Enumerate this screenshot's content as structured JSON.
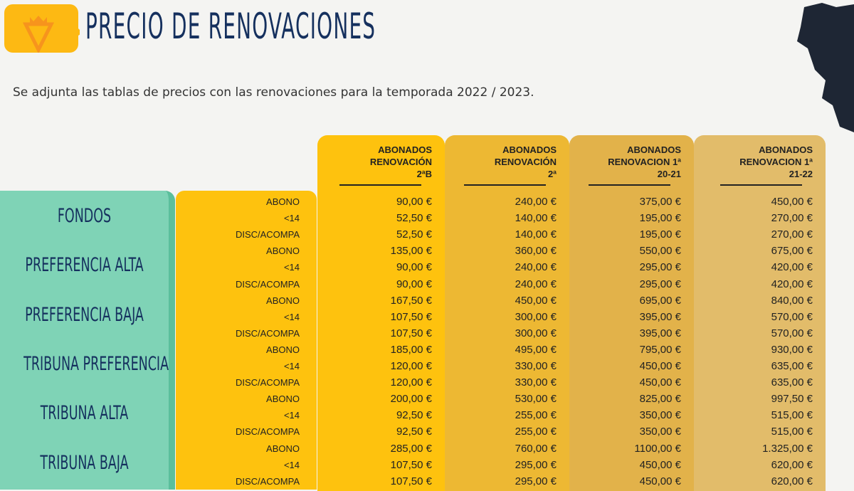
{
  "header": {
    "title": "PRECIO DE RENOVACIONES",
    "intro": "Se adjunta las tablas de precios con las renovaciones para la temporada 2022 / 2023."
  },
  "colors": {
    "title": "#15305e",
    "green": "#7fd3b6",
    "yellow": "#fec20e"
  },
  "columns": [
    {
      "lines": [
        "ABONADOS",
        "RENOVACIÓN",
        "2ªB"
      ]
    },
    {
      "lines": [
        "ABONADOS",
        "RENOVACIÓN",
        "2ª"
      ]
    },
    {
      "lines": [
        "ABONADOS",
        "RENOVACION 1ª",
        "20-21"
      ]
    },
    {
      "lines": [
        "ABONADOS",
        "RENOVACION  1ª",
        "21-22"
      ]
    }
  ],
  "groups": [
    "FONDOS",
    "PREFERENCIA ALTA",
    "PREFERENCIA BAJA",
    "TRIBUNA PREFERENCIA",
    "TRIBUNA ALTA",
    "TRIBUNA BAJA"
  ],
  "rows": [
    {
      "label": "ABONO",
      "v": [
        "90,00 €",
        "240,00 €",
        "375,00 €",
        "450,00 €"
      ]
    },
    {
      "label": "<14",
      "v": [
        "52,50 €",
        "140,00 €",
        "195,00 €",
        "270,00 €"
      ]
    },
    {
      "label": "DISC/ACOMPA",
      "v": [
        "52,50 €",
        "140,00 €",
        "195,00 €",
        "270,00 €"
      ]
    },
    {
      "label": "ABONO",
      "v": [
        "135,00 €",
        "360,00 €",
        "550,00 €",
        "675,00 €"
      ]
    },
    {
      "label": "<14",
      "v": [
        "90,00 €",
        "240,00 €",
        "295,00 €",
        "420,00 €"
      ]
    },
    {
      "label": "DISC/ACOMPA",
      "v": [
        "90,00 €",
        "240,00 €",
        "295,00 €",
        "420,00 €"
      ]
    },
    {
      "label": "ABONO",
      "v": [
        "167,50 €",
        "450,00 €",
        "695,00 €",
        "840,00 €"
      ]
    },
    {
      "label": "<14",
      "v": [
        "107,50 €",
        "300,00 €",
        "395,00 €",
        "570,00 €"
      ]
    },
    {
      "label": "DISC/ACOMPA",
      "v": [
        "107,50 €",
        "300,00 €",
        "395,00 €",
        "570,00 €"
      ]
    },
    {
      "label": "ABONO",
      "v": [
        "185,00 €",
        "495,00 €",
        "795,00 €",
        "930,00 €"
      ]
    },
    {
      "label": "<14",
      "v": [
        "120,00 €",
        "330,00 €",
        "450,00 €",
        "635,00 €"
      ]
    },
    {
      "label": "DISC/ACOMPA",
      "v": [
        "120,00 €",
        "330,00 €",
        "450,00 €",
        "635,00 €"
      ]
    },
    {
      "label": "ABONO",
      "v": [
        "200,00 €",
        "530,00 €",
        "825,00 €",
        "997,50 €"
      ]
    },
    {
      "label": "<14",
      "v": [
        "92,50 €",
        "255,00 €",
        "350,00 €",
        "515,00 €"
      ]
    },
    {
      "label": "DISC/ACOMPA",
      "v": [
        "92,50 €",
        "255,00 €",
        "350,00 €",
        "515,00 €"
      ]
    },
    {
      "label": "ABONO",
      "v": [
        "285,00 €",
        "760,00 €",
        "1100,00 €",
        "1.325,00 €"
      ]
    },
    {
      "label": "<14",
      "v": [
        "107,50 €",
        "295,00 €",
        "450,00 €",
        "620,00 €"
      ]
    },
    {
      "label": "DISC/ACOMPA",
      "v": [
        "107,50 €",
        "295,00 €",
        "450,00 €",
        "620,00 €"
      ]
    }
  ]
}
